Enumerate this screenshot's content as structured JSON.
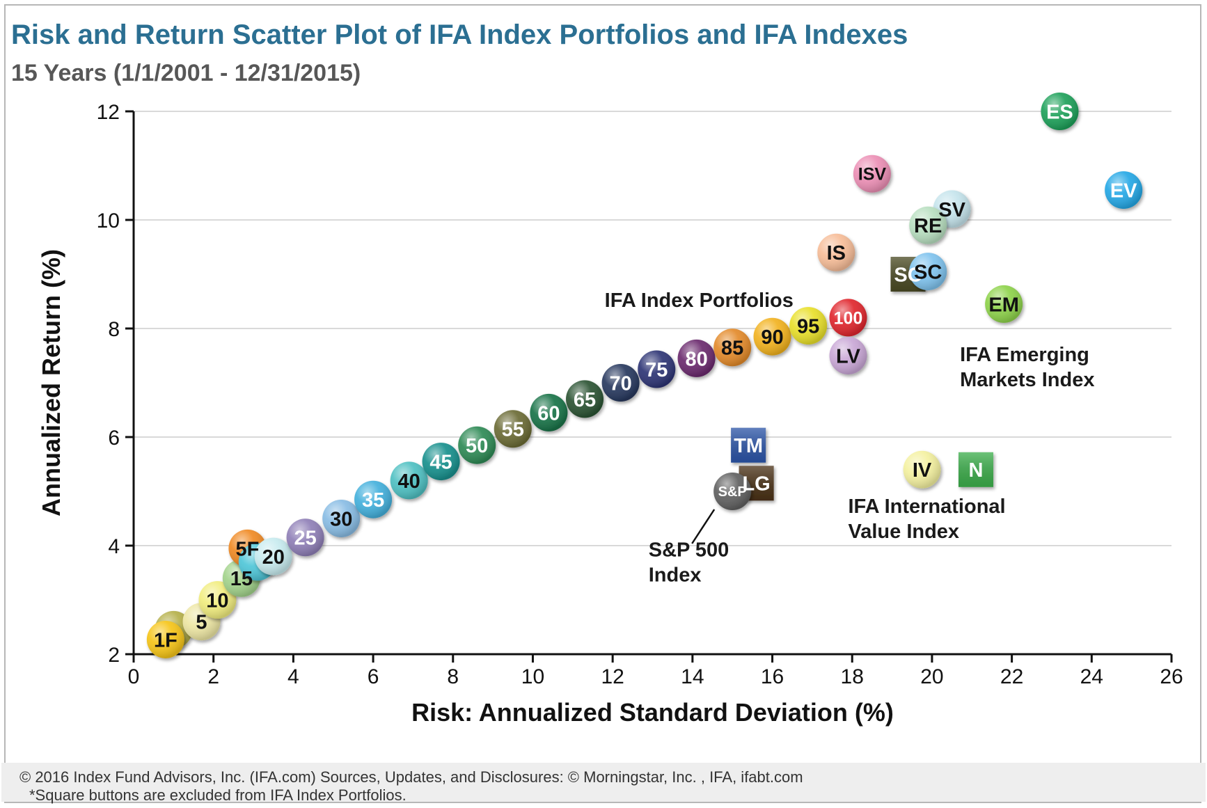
{
  "header": {
    "title": "Risk and Return Scatter Plot of IFA Index Portfolios and IFA Indexes",
    "subtitle": "15 Years (1/1/2001 - 12/31/2015)"
  },
  "footer": {
    "line1": "© 2016 Index Fund Advisors, Inc. (IFA.com)   Sources, Updates, and Disclosures:  © Morningstar, Inc. , IFA, ifabt.com",
    "line2": "*Square buttons are excluded from IFA Index Portfolios."
  },
  "chart_data": {
    "type": "scatter",
    "title": "Risk and Return Scatter Plot of IFA Index Portfolios and IFA Indexes",
    "subtitle": "15 Years (1/1/2001 - 12/31/2015)",
    "xlabel": "Risk: Annualized Standard Deviation (%)",
    "ylabel": "Annualized Return (%)",
    "xlim": [
      0,
      26
    ],
    "ylim": [
      2,
      12
    ],
    "xticks": [
      0,
      2,
      4,
      6,
      8,
      10,
      12,
      14,
      16,
      18,
      20,
      22,
      24,
      26
    ],
    "yticks": [
      2,
      4,
      6,
      8,
      10,
      12
    ],
    "grid": "horizontal",
    "annotations": [
      {
        "text": "IFA Index Portfolios",
        "x": 11.8,
        "y": 8.4
      },
      {
        "text": "IFA Emerging\nMarkets Index",
        "x": 20.7,
        "y": 7.4
      },
      {
        "text": "IFA International\nValue Index",
        "x": 17.9,
        "y": 4.6
      },
      {
        "text": "S&P 500\nIndex",
        "x": 12.9,
        "y": 3.8
      }
    ],
    "points": [
      {
        "label": "",
        "x": 1.0,
        "y": 2.45,
        "shape": "circle",
        "color": "#b5b04a"
      },
      {
        "label": "1F",
        "x": 0.8,
        "y": 2.27,
        "shape": "circle",
        "color": "#f6c518"
      },
      {
        "label": "5",
        "x": 1.7,
        "y": 2.6,
        "shape": "circle",
        "color": "#ede6a3"
      },
      {
        "label": "10",
        "x": 2.1,
        "y": 3.0,
        "shape": "circle",
        "color": "#f1ed7e"
      },
      {
        "label": "15",
        "x": 2.7,
        "y": 3.4,
        "shape": "circle",
        "color": "#a2d38b"
      },
      {
        "label": "5F",
        "x": 2.85,
        "y": 3.95,
        "shape": "circle",
        "color": "#f08a24"
      },
      {
        "label": "",
        "x": 3.1,
        "y": 3.7,
        "shape": "circle",
        "color": "#4fc6d8"
      },
      {
        "label": "20",
        "x": 3.5,
        "y": 3.8,
        "shape": "circle",
        "color": "#c7ebef"
      },
      {
        "label": "25",
        "x": 4.3,
        "y": 4.15,
        "shape": "circle",
        "color": "#8f7fb7"
      },
      {
        "label": "30",
        "x": 5.2,
        "y": 4.5,
        "shape": "circle",
        "color": "#88bce4"
      },
      {
        "label": "35",
        "x": 6.0,
        "y": 4.85,
        "shape": "circle",
        "color": "#43b0dc"
      },
      {
        "label": "40",
        "x": 6.9,
        "y": 5.2,
        "shape": "circle",
        "color": "#4ec0c2"
      },
      {
        "label": "45",
        "x": 7.7,
        "y": 5.55,
        "shape": "circle",
        "color": "#17908d"
      },
      {
        "label": "50",
        "x": 8.6,
        "y": 5.85,
        "shape": "circle",
        "color": "#2e8a55"
      },
      {
        "label": "55",
        "x": 9.5,
        "y": 6.15,
        "shape": "circle",
        "color": "#6b6b35"
      },
      {
        "label": "60",
        "x": 10.4,
        "y": 6.45,
        "shape": "circle",
        "color": "#197348"
      },
      {
        "label": "65",
        "x": 11.3,
        "y": 6.7,
        "shape": "circle",
        "color": "#2b5333"
      },
      {
        "label": "70",
        "x": 12.2,
        "y": 7.0,
        "shape": "circle",
        "color": "#27385e"
      },
      {
        "label": "75",
        "x": 13.1,
        "y": 7.25,
        "shape": "circle",
        "color": "#2e3575"
      },
      {
        "label": "80",
        "x": 14.1,
        "y": 7.45,
        "shape": "circle",
        "color": "#6b2a6e"
      },
      {
        "label": "85",
        "x": 15.0,
        "y": 7.65,
        "shape": "circle",
        "color": "#e38a2a"
      },
      {
        "label": "90",
        "x": 16.0,
        "y": 7.85,
        "shape": "circle",
        "color": "#f2b21e"
      },
      {
        "label": "95",
        "x": 16.9,
        "y": 8.05,
        "shape": "circle",
        "color": "#e9e02a"
      },
      {
        "label": "100",
        "x": 17.9,
        "y": 8.2,
        "shape": "circle",
        "color": "#e0262d"
      },
      {
        "label": "LV",
        "x": 17.9,
        "y": 7.5,
        "shape": "circle",
        "color": "#c9a7d6"
      },
      {
        "label": "IS",
        "x": 17.6,
        "y": 9.4,
        "shape": "circle",
        "color": "#f7bd98"
      },
      {
        "label": "ISV",
        "x": 18.5,
        "y": 10.85,
        "shape": "circle",
        "color": "#ec8fb5"
      },
      {
        "label": "SC",
        "x": 19.4,
        "y": 9.0,
        "shape": "square",
        "color": "#4b4b24"
      },
      {
        "label": "SV",
        "x": 20.5,
        "y": 10.2,
        "shape": "circle",
        "color": "#c5e4ec"
      },
      {
        "label": "RE",
        "x": 19.9,
        "y": 9.9,
        "shape": "circle",
        "color": "#b8dfc0"
      },
      {
        "label": "SC",
        "x": 19.9,
        "y": 9.05,
        "shape": "circle",
        "color": "#7fc3ee"
      },
      {
        "label": "EM",
        "x": 21.8,
        "y": 8.45,
        "shape": "circle",
        "color": "#8ed34b"
      },
      {
        "label": "ES",
        "x": 23.2,
        "y": 12.0,
        "shape": "circle",
        "color": "#1ea15a"
      },
      {
        "label": "EV",
        "x": 24.8,
        "y": 10.55,
        "shape": "circle",
        "color": "#25a8e6"
      },
      {
        "label": "TM",
        "x": 15.4,
        "y": 5.85,
        "shape": "square",
        "color": "#2c55a8"
      },
      {
        "label": "LG",
        "x": 15.6,
        "y": 5.15,
        "shape": "square",
        "color": "#4a3116"
      },
      {
        "label": "S&P",
        "x": 15.0,
        "y": 5.0,
        "shape": "circle",
        "color": "#606060"
      },
      {
        "label": "IV",
        "x": 19.75,
        "y": 5.4,
        "shape": "circle",
        "color": "#f4f1a0"
      },
      {
        "label": "N",
        "x": 21.1,
        "y": 5.4,
        "shape": "square",
        "color": "#3cae4b"
      }
    ]
  }
}
